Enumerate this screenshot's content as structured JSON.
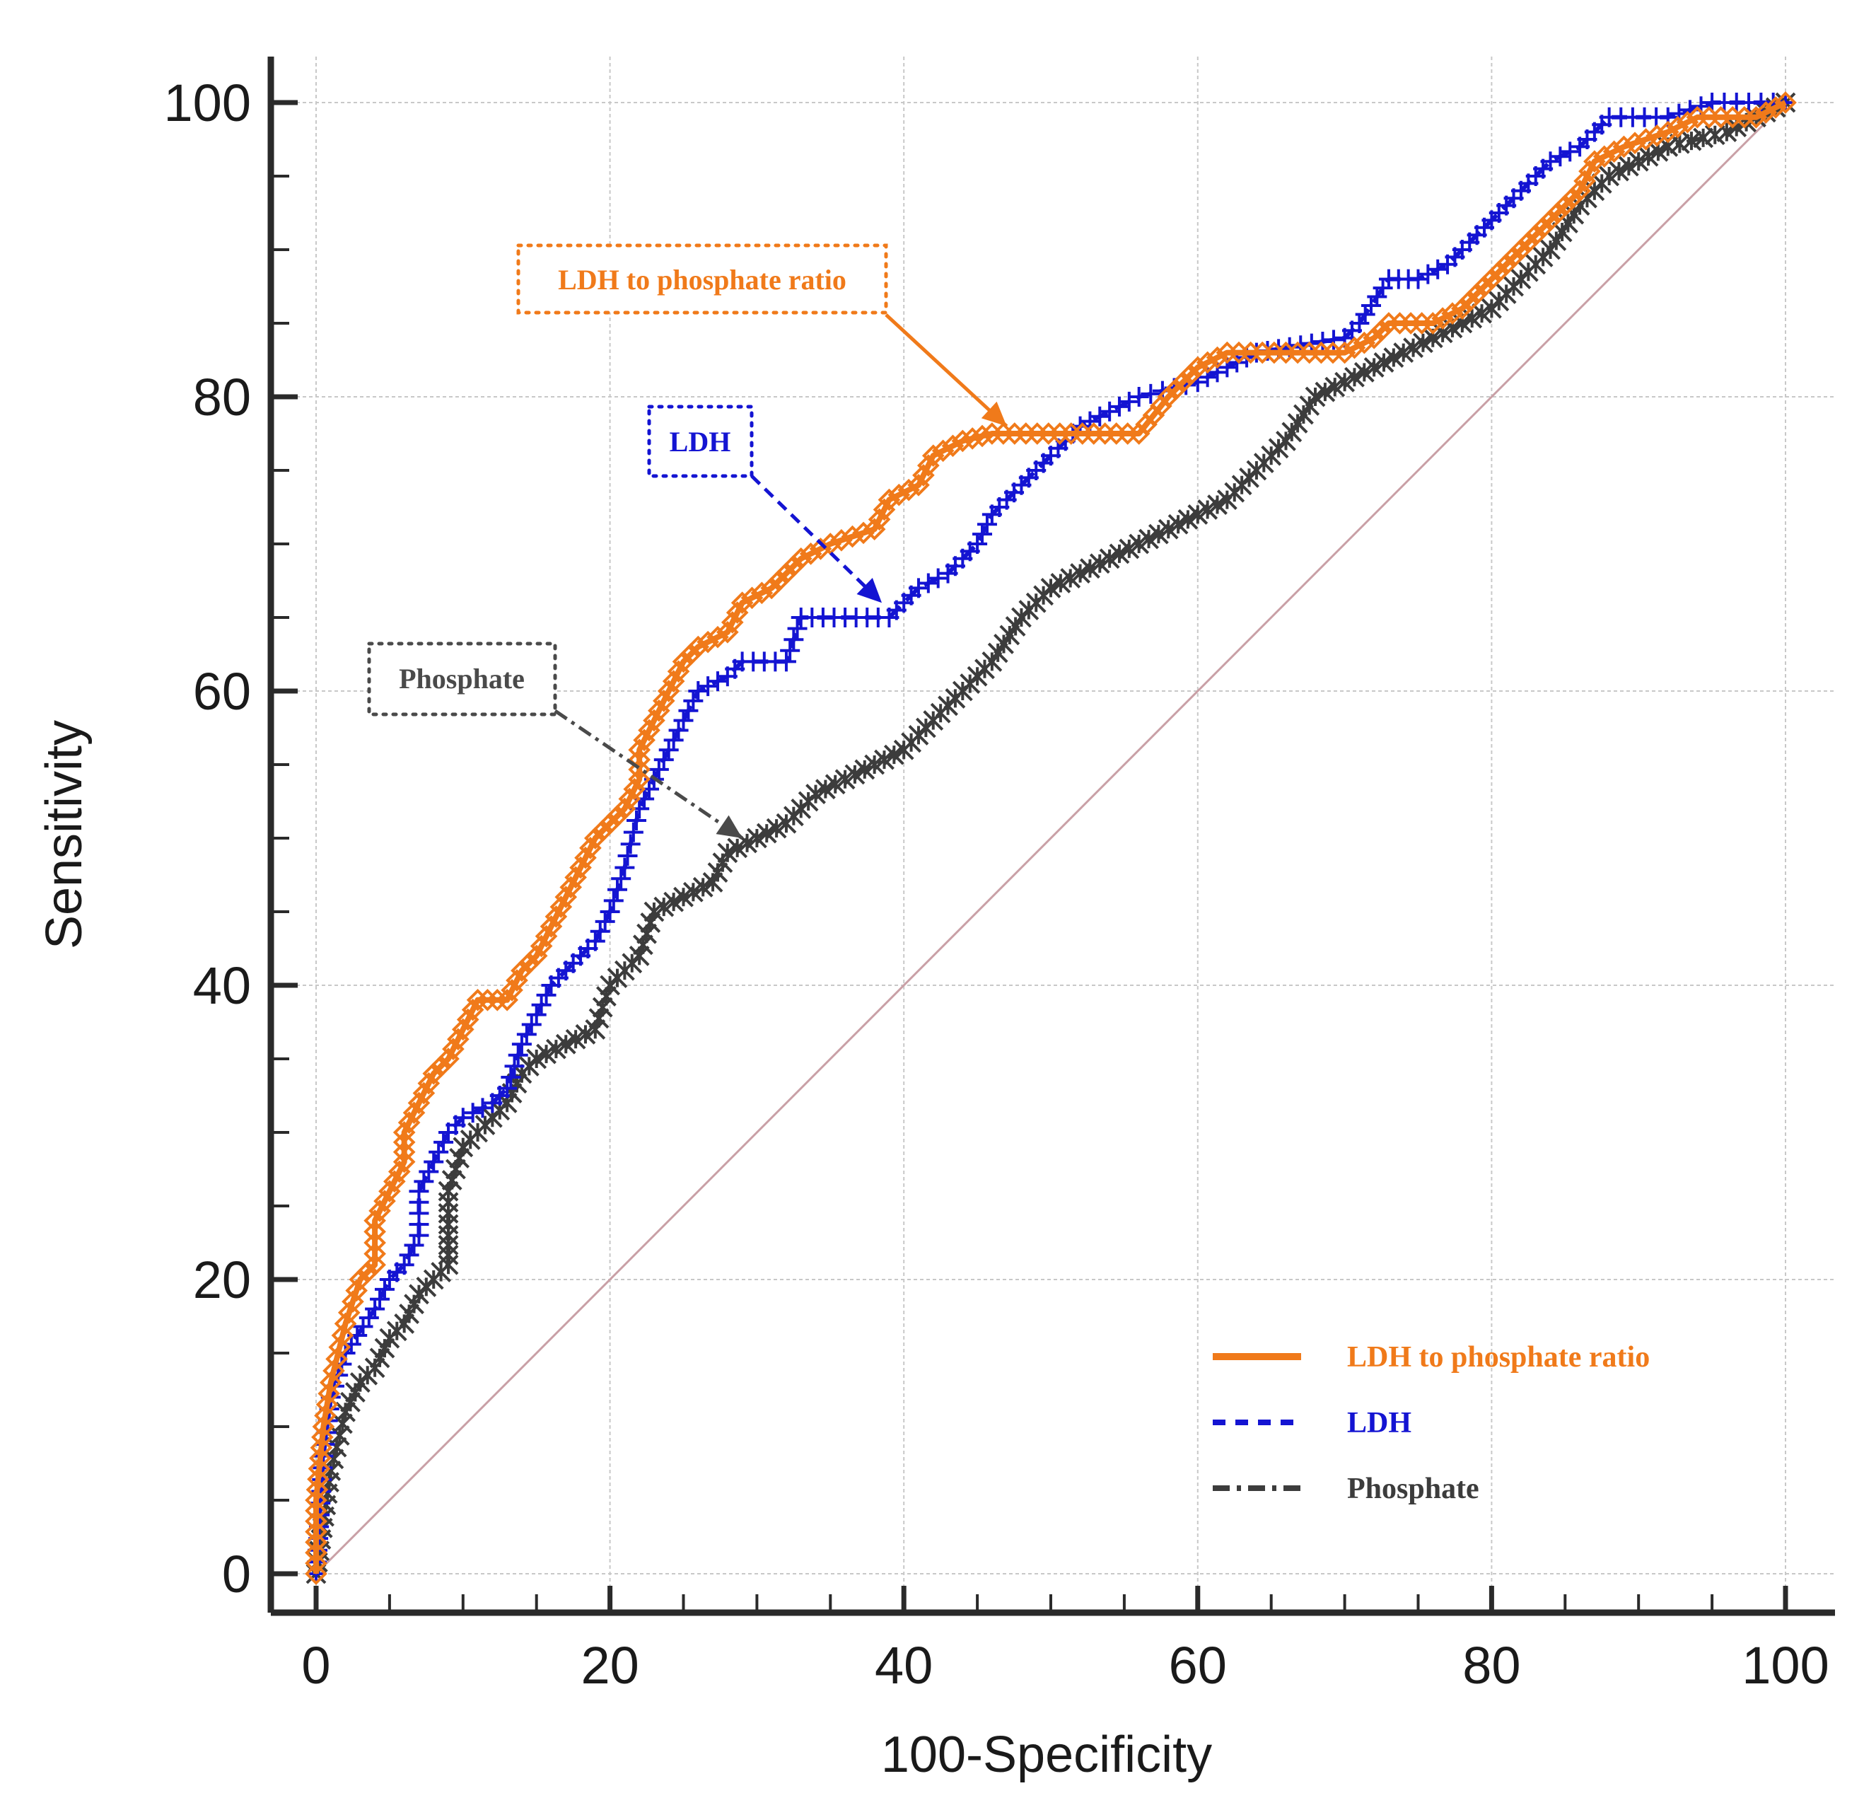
{
  "chart_data": {
    "type": "line",
    "title": "",
    "xlabel": "100-Specificity",
    "ylabel": "Sensitivity",
    "xlim": [
      0,
      100
    ],
    "ylim": [
      0,
      100
    ],
    "x_ticks": [
      "0",
      "20",
      "40",
      "60",
      "80",
      "100"
    ],
    "y_ticks": [
      "0",
      "20",
      "40",
      "60",
      "80",
      "100"
    ],
    "grid": true,
    "legend_position": "bottom-right",
    "reference_line": {
      "from": [
        0,
        0
      ],
      "to": [
        100,
        100
      ],
      "color": "#c9a0a6"
    },
    "series": [
      {
        "name": "LDH to phosphate ratio",
        "color": "#f07a1a",
        "style": "solid",
        "marker": "diamond",
        "points": [
          [
            0,
            0
          ],
          [
            0,
            5
          ],
          [
            0.5,
            10
          ],
          [
            1,
            13
          ],
          [
            2,
            17
          ],
          [
            3,
            20
          ],
          [
            4,
            21
          ],
          [
            4,
            24
          ],
          [
            5,
            26
          ],
          [
            6,
            28
          ],
          [
            6,
            30
          ],
          [
            7,
            32
          ],
          [
            8,
            34
          ],
          [
            9,
            35
          ],
          [
            10,
            37
          ],
          [
            11,
            39
          ],
          [
            13,
            39
          ],
          [
            14,
            41
          ],
          [
            15,
            42
          ],
          [
            16,
            44
          ],
          [
            17,
            46
          ],
          [
            18,
            48
          ],
          [
            19,
            50
          ],
          [
            21,
            52
          ],
          [
            22,
            54
          ],
          [
            22,
            56
          ],
          [
            23,
            58
          ],
          [
            24,
            60
          ],
          [
            25,
            62
          ],
          [
            26,
            63
          ],
          [
            28,
            64
          ],
          [
            29,
            66
          ],
          [
            31,
            67
          ],
          [
            33,
            69
          ],
          [
            35,
            70
          ],
          [
            38,
            71
          ],
          [
            39,
            73
          ],
          [
            41,
            74
          ],
          [
            42,
            76
          ],
          [
            44,
            77
          ],
          [
            46,
            77.5
          ],
          [
            56,
            77.5
          ],
          [
            58,
            80
          ],
          [
            60,
            82
          ],
          [
            62,
            83
          ],
          [
            70,
            83
          ],
          [
            72,
            84
          ],
          [
            73,
            85
          ],
          [
            76,
            85
          ],
          [
            78,
            86
          ],
          [
            80,
            88
          ],
          [
            82,
            90
          ],
          [
            84,
            92
          ],
          [
            86,
            94
          ],
          [
            87,
            96
          ],
          [
            89,
            97
          ],
          [
            92,
            98
          ],
          [
            94,
            99
          ],
          [
            98,
            99
          ],
          [
            100,
            100
          ]
        ]
      },
      {
        "name": "LDH",
        "color": "#1414d2",
        "style": "dashed",
        "marker": "plus",
        "points": [
          [
            0,
            0
          ],
          [
            0.5,
            8
          ],
          [
            1,
            12
          ],
          [
            2,
            15
          ],
          [
            4,
            18
          ],
          [
            5,
            20
          ],
          [
            6,
            21
          ],
          [
            7,
            23
          ],
          [
            7,
            26
          ],
          [
            8,
            28
          ],
          [
            9,
            30
          ],
          [
            10,
            31
          ],
          [
            12,
            32
          ],
          [
            13,
            33
          ],
          [
            14,
            36
          ],
          [
            15,
            38
          ],
          [
            16,
            40
          ],
          [
            17,
            41
          ],
          [
            19,
            43
          ],
          [
            20,
            45
          ],
          [
            21,
            48
          ],
          [
            22,
            52
          ],
          [
            23,
            54
          ],
          [
            24,
            56
          ],
          [
            25,
            58
          ],
          [
            26,
            60
          ],
          [
            28,
            61
          ],
          [
            29,
            62
          ],
          [
            32,
            62
          ],
          [
            33,
            65
          ],
          [
            39,
            65
          ],
          [
            41,
            67
          ],
          [
            43,
            68
          ],
          [
            45,
            70
          ],
          [
            46,
            72
          ],
          [
            48,
            74
          ],
          [
            50,
            76
          ],
          [
            52,
            78
          ],
          [
            56,
            80
          ],
          [
            60,
            81
          ],
          [
            64,
            83
          ],
          [
            70,
            84
          ],
          [
            71,
            85
          ],
          [
            73,
            88
          ],
          [
            75,
            88
          ],
          [
            77,
            89
          ],
          [
            79,
            91
          ],
          [
            80,
            92
          ],
          [
            82,
            94
          ],
          [
            84,
            96
          ],
          [
            86,
            97
          ],
          [
            88,
            99
          ],
          [
            92,
            99
          ],
          [
            95,
            100
          ],
          [
            100,
            100
          ]
        ]
      },
      {
        "name": "Phosphate",
        "color": "#3c3c3c",
        "style": "dashdot",
        "marker": "asterisk",
        "points": [
          [
            0,
            0
          ],
          [
            1,
            7
          ],
          [
            2,
            11
          ],
          [
            3,
            13
          ],
          [
            4,
            14
          ],
          [
            5,
            16
          ],
          [
            6,
            17
          ],
          [
            7,
            19
          ],
          [
            8,
            20
          ],
          [
            9,
            21
          ],
          [
            9,
            23
          ],
          [
            9,
            26
          ],
          [
            10,
            29
          ],
          [
            11,
            30
          ],
          [
            13,
            32
          ],
          [
            14,
            34
          ],
          [
            15,
            35
          ],
          [
            17,
            36
          ],
          [
            19,
            37
          ],
          [
            20,
            40
          ],
          [
            22,
            42
          ],
          [
            23,
            45
          ],
          [
            25,
            46
          ],
          [
            27,
            47
          ],
          [
            28,
            49
          ],
          [
            30,
            50
          ],
          [
            32,
            51
          ],
          [
            34,
            53
          ],
          [
            36,
            54
          ],
          [
            38,
            55
          ],
          [
            40,
            56
          ],
          [
            42,
            58
          ],
          [
            44,
            60
          ],
          [
            46,
            62
          ],
          [
            48,
            65
          ],
          [
            50,
            67
          ],
          [
            52,
            68
          ],
          [
            54,
            69
          ],
          [
            56,
            70
          ],
          [
            58,
            71
          ],
          [
            60,
            72
          ],
          [
            62,
            73
          ],
          [
            64,
            75
          ],
          [
            66,
            77
          ],
          [
            68,
            80
          ],
          [
            70,
            81
          ],
          [
            72,
            82
          ],
          [
            74,
            83
          ],
          [
            76,
            84
          ],
          [
            78,
            85
          ],
          [
            80,
            86
          ],
          [
            82,
            88
          ],
          [
            84,
            90
          ],
          [
            86,
            93
          ],
          [
            88,
            95
          ],
          [
            90,
            96
          ],
          [
            92,
            97
          ],
          [
            96,
            98
          ],
          [
            100,
            100
          ]
        ]
      }
    ],
    "callouts": [
      {
        "text": "LDH to phosphate ratio",
        "color": "#f07a1a",
        "target": [
          47,
          78
        ]
      },
      {
        "text": "LDH",
        "color": "#1414d2",
        "target": [
          38.5,
          66
        ]
      },
      {
        "text": "Phosphate",
        "color": "#4a4a4a",
        "target": [
          29,
          50
        ]
      }
    ]
  }
}
